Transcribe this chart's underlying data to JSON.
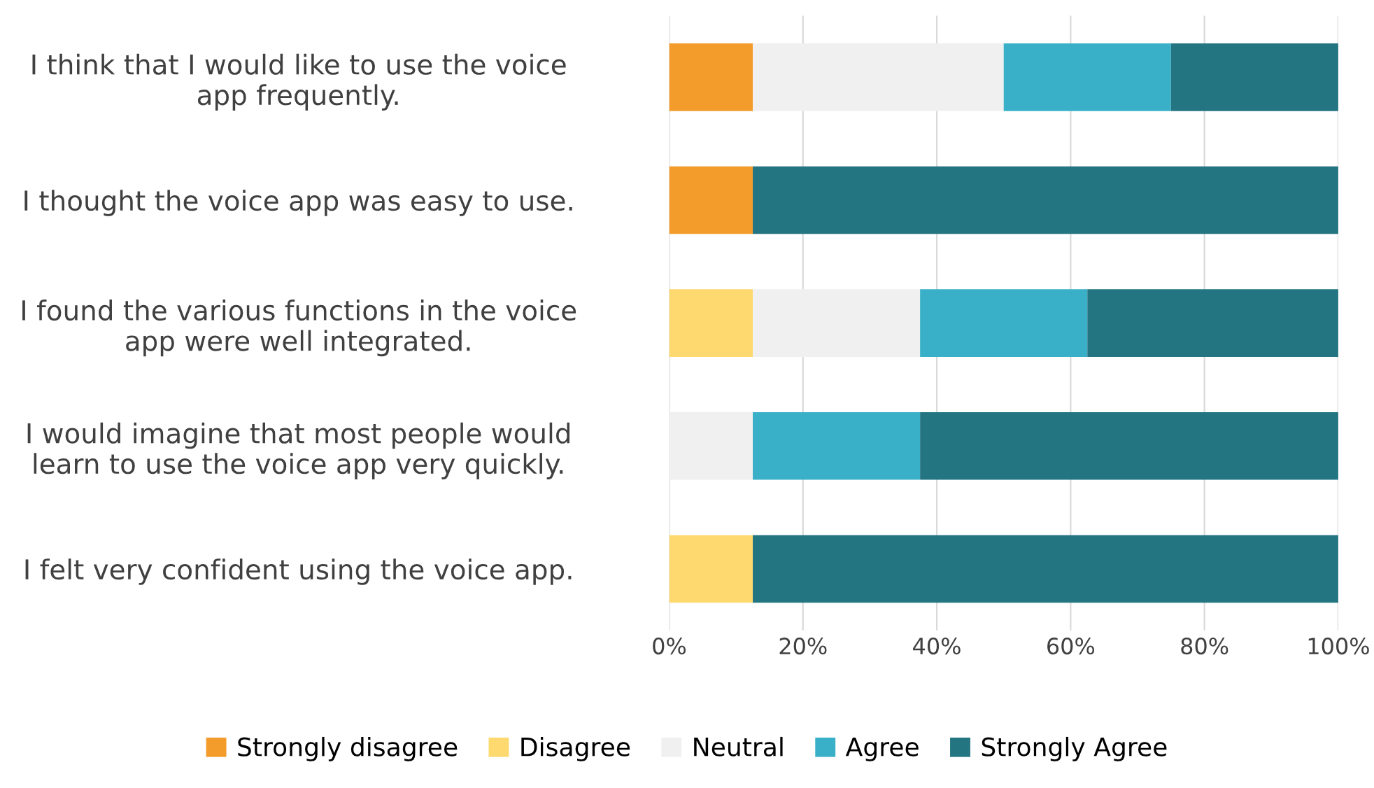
{
  "chart_data": {
    "type": "bar",
    "orientation": "horizontal",
    "stacked": true,
    "categories": [
      "I think that I would like to use the voice\napp frequently.",
      "I thought the voice app was easy to use.",
      "I found the various functions in the voice\napp were well integrated.",
      "I would imagine that most people would\nlearn to use the voice app very quickly.",
      "I felt very confident using the voice app."
    ],
    "series": [
      {
        "name": "Strongly disagree",
        "color": "#f39c2c",
        "values": [
          12.5,
          12.5,
          0,
          0,
          0
        ]
      },
      {
        "name": "Disagree",
        "color": "#fdd96f",
        "values": [
          0,
          0,
          12.5,
          0,
          12.5
        ]
      },
      {
        "name": "Neutral",
        "color": "#f0f0f0",
        "values": [
          37.5,
          0,
          25,
          12.5,
          0
        ]
      },
      {
        "name": "Agree",
        "color": "#3ab0c8",
        "values": [
          25,
          0,
          25,
          25,
          0
        ]
      },
      {
        "name": "Strongly Agree",
        "color": "#247582",
        "values": [
          25,
          87.5,
          37.5,
          62.5,
          87.5
        ]
      }
    ],
    "xlim": [
      0,
      100
    ],
    "xticks": [
      {
        "value": 0,
        "label": "0%"
      },
      {
        "value": 20,
        "label": "20%"
      },
      {
        "value": 40,
        "label": "40%"
      },
      {
        "value": 60,
        "label": "60%"
      },
      {
        "value": 80,
        "label": "80%"
      },
      {
        "value": 100,
        "label": "100%"
      }
    ],
    "grid": "x",
    "legend": "bottom"
  }
}
